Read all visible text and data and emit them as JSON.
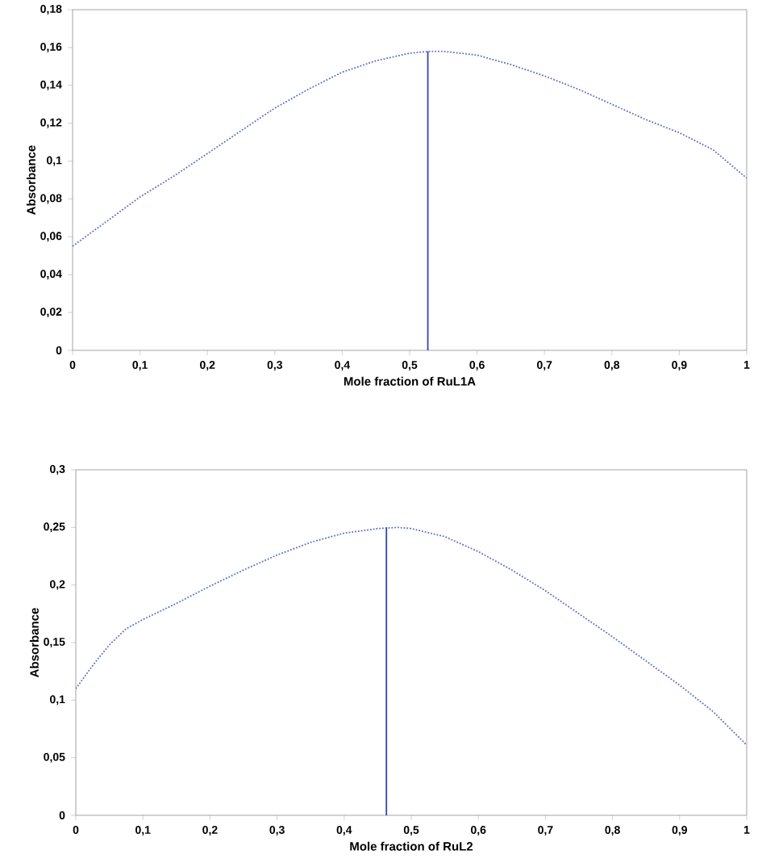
{
  "chart_data": [
    {
      "type": "line",
      "xlabel": "Mole fraction of RuL1A",
      "ylabel": "Absorbance",
      "xlim": [
        0,
        1
      ],
      "ylim": [
        0,
        0.18
      ],
      "xticks": [
        0,
        {
          "value": 0.1,
          "label": "0,1"
        },
        {
          "value": 0.2,
          "label": "0,2"
        },
        {
          "value": 0.3,
          "label": "0,3"
        },
        {
          "value": 0.4,
          "label": "0,4"
        },
        {
          "value": 0.5,
          "label": "0,5"
        },
        {
          "value": 0.6,
          "label": "0,6"
        },
        {
          "value": 0.7,
          "label": "0,7"
        },
        {
          "value": 0.8,
          "label": "0,8"
        },
        {
          "value": 0.9,
          "label": "0,9"
        },
        1
      ],
      "yticks": [
        0,
        {
          "value": 0.02,
          "label": "0,02"
        },
        {
          "value": 0.04,
          "label": "0,04"
        },
        {
          "value": 0.06,
          "label": "0,06"
        },
        {
          "value": 0.08,
          "label": "0,08"
        },
        {
          "value": 0.1,
          "label": "0,1"
        },
        {
          "value": 0.12,
          "label": "0,12"
        },
        {
          "value": 0.14,
          "label": "0,14"
        },
        {
          "value": 0.16,
          "label": "0,16"
        },
        {
          "value": 0.18,
          "label": "0,18"
        }
      ],
      "marker": "none",
      "series": [
        {
          "color": "#5b6fc4",
          "line_style": "dotted",
          "x": [
            0,
            0.05,
            0.1,
            0.15,
            0.2,
            0.25,
            0.3,
            0.35,
            0.4,
            0.45,
            0.5,
            0.53,
            0.55,
            0.6,
            0.65,
            0.7,
            0.75,
            0.8,
            0.85,
            0.9,
            0.95,
            1
          ],
          "values": [
            0.055,
            0.068,
            0.081,
            0.092,
            0.104,
            0.116,
            0.128,
            0.138,
            0.147,
            0.153,
            0.157,
            0.158,
            0.158,
            0.156,
            0.151,
            0.145,
            0.138,
            0.13,
            0.122,
            0.115,
            0.106,
            0.091
          ]
        },
        {
          "color": "#3344bb",
          "line_style": "solid",
          "x": [
            0.527,
            0.527
          ],
          "values": [
            0,
            0.158
          ]
        }
      ]
    },
    {
      "type": "line",
      "xlabel": "Mole fraction of RuL2",
      "ylabel": "Absorbance",
      "xlim": [
        0,
        1
      ],
      "ylim": [
        0,
        0.3
      ],
      "xticks": [
        0,
        {
          "value": 0.1,
          "label": "0,1"
        },
        {
          "value": 0.2,
          "label": "0,2"
        },
        {
          "value": 0.3,
          "label": "0,3"
        },
        {
          "value": 0.4,
          "label": "0,4"
        },
        {
          "value": 0.5,
          "label": "0,5"
        },
        {
          "value": 0.6,
          "label": "0,6"
        },
        {
          "value": 0.7,
          "label": "0,7"
        },
        {
          "value": 0.8,
          "label": "0,8"
        },
        {
          "value": 0.9,
          "label": "0,9"
        },
        1
      ],
      "yticks": [
        0,
        {
          "value": 0.05,
          "label": "0,05"
        },
        {
          "value": 0.1,
          "label": "0,1"
        },
        {
          "value": 0.15,
          "label": "0,15"
        },
        {
          "value": 0.2,
          "label": "0,2"
        },
        {
          "value": 0.25,
          "label": "0,25"
        },
        {
          "value": 0.3,
          "label": "0,3"
        }
      ],
      "marker": "none",
      "series": [
        {
          "color": "#5b6fc4",
          "line_style": "dotted",
          "x": [
            0,
            0.025,
            0.05,
            0.075,
            0.1,
            0.15,
            0.2,
            0.25,
            0.3,
            0.35,
            0.4,
            0.45,
            0.48,
            0.5,
            0.55,
            0.6,
            0.65,
            0.7,
            0.75,
            0.8,
            0.85,
            0.9,
            0.95,
            1
          ],
          "values": [
            0.11,
            0.13,
            0.148,
            0.162,
            0.17,
            0.184,
            0.199,
            0.213,
            0.226,
            0.237,
            0.245,
            0.249,
            0.25,
            0.249,
            0.242,
            0.229,
            0.213,
            0.195,
            0.175,
            0.155,
            0.134,
            0.113,
            0.09,
            0.061
          ]
        },
        {
          "color": "#3344bb",
          "line_style": "solid",
          "x": [
            0.463,
            0.463
          ],
          "values": [
            0,
            0.25
          ]
        }
      ]
    }
  ]
}
